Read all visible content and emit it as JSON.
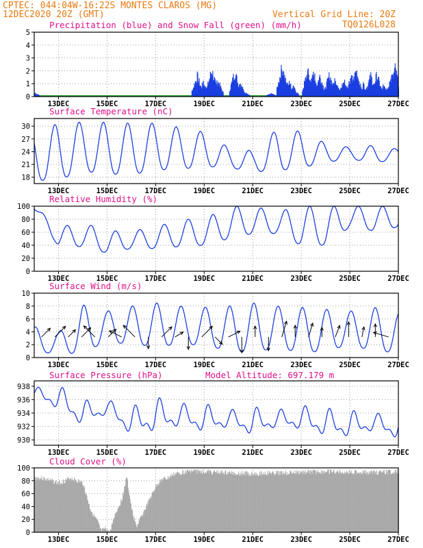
{
  "header": {
    "line1_left": "CPTEC:   044:04W-16:22S   MONTES CLAROS (MG)",
    "line2_left": "12DEC2020 20Z (GMT)",
    "line2_right": "Vertical Grid Line: 20Z",
    "line3_right": "TQ0126L028"
  },
  "colors": {
    "header": "#e87a10",
    "title": "#e0108a",
    "series": "#1a3fe0",
    "snow": "#2aa02a",
    "cloud": "#a6a6a6",
    "arrow": "#000000"
  },
  "date_ticks": [
    "13DEC",
    "15DEC",
    "17DEC",
    "19DEC",
    "21DEC",
    "23DEC",
    "25DEC",
    "27DEC"
  ],
  "chart_data": [
    {
      "type": "bar",
      "title": "Precipitation (blue) and Snow Fall (green) (mm/h)",
      "ylim": [
        0,
        5
      ],
      "yticks": [
        0,
        1,
        2,
        3,
        4,
        5
      ],
      "series": [
        {
          "name": "Precipitation",
          "bursts": [
            [
              0.0,
              0.4
            ],
            [
              6.7,
              2.0
            ],
            [
              6.95,
              1.3
            ],
            [
              7.3,
              2.6
            ],
            [
              7.55,
              1.5
            ],
            [
              8.25,
              2.4
            ],
            [
              8.45,
              1.3
            ],
            [
              8.65,
              0.4
            ],
            [
              9.75,
              0.3
            ],
            [
              10.2,
              2.9
            ],
            [
              10.45,
              1.6
            ],
            [
              10.65,
              0.9
            ],
            [
              11.25,
              2.4
            ],
            [
              11.5,
              2.2
            ],
            [
              11.75,
              2.0
            ],
            [
              12.15,
              2.1
            ],
            [
              12.4,
              1.7
            ],
            [
              12.75,
              1.5
            ],
            [
              13.05,
              2.1
            ],
            [
              13.25,
              2.6
            ],
            [
              13.55,
              1.2
            ],
            [
              13.85,
              2.0
            ],
            [
              14.1,
              2.1
            ],
            [
              14.4,
              1.1
            ],
            [
              14.7,
              2.0
            ],
            [
              14.85,
              2.7
            ],
            [
              14.95,
              1.1
            ]
          ]
        },
        {
          "name": "Snow Fall",
          "values": "trace along zero line"
        }
      ]
    },
    {
      "type": "line",
      "title": "Surface Temperature (nC)",
      "ylim": [
        16.5,
        31.8
      ],
      "yticks": [
        18,
        21,
        24,
        27,
        30
      ],
      "min_max_pairs": [
        [
          17.2,
          29.0
        ],
        [
          17.4,
          30.6
        ],
        [
          19.4,
          31.0
        ],
        [
          18.8,
          30.9
        ],
        [
          18.6,
          30.7
        ],
        [
          19.7,
          30.7
        ],
        [
          19.9,
          29.7
        ],
        [
          20.5,
          28.6
        ],
        [
          20.3,
          25.0
        ],
        [
          19.3,
          24.2
        ],
        [
          19.5,
          29.3
        ],
        [
          20.2,
          28.8
        ],
        [
          21.5,
          26.0
        ],
        [
          22.3,
          25.0
        ],
        [
          21.4,
          25.5
        ],
        [
          22.2,
          24.6
        ],
        [
          21.6,
          25.7
        ],
        [
          22.6,
          24.6
        ],
        [
          22.3,
          24.9
        ],
        [
          22.0,
          24.6
        ]
      ]
    },
    {
      "type": "line",
      "title": "Relative Humidity (%)",
      "ylim": [
        0,
        100
      ],
      "yticks": [
        0,
        20,
        40,
        60,
        80,
        100
      ],
      "min_max_pairs": [
        [
          95,
          100
        ],
        [
          38,
          68
        ],
        [
          38,
          75
        ],
        [
          28,
          62
        ],
        [
          35,
          62
        ],
        [
          35,
          68
        ],
        [
          38,
          80
        ],
        [
          40,
          80
        ],
        [
          50,
          100
        ],
        [
          58,
          100
        ],
        [
          58,
          92
        ],
        [
          40,
          100
        ],
        [
          40,
          100
        ],
        [
          68,
          100
        ],
        [
          62,
          100
        ],
        [
          68,
          100
        ],
        [
          70,
          100
        ],
        [
          58,
          100
        ],
        [
          65,
          100
        ]
      ]
    },
    {
      "type": "line",
      "title": "Surface Wind (m/s)",
      "ylim": [
        0,
        10
      ],
      "yticks": [
        0,
        2,
        4,
        6,
        8,
        10
      ],
      "min_max_pairs": [
        [
          1,
          4.8
        ],
        [
          0.5,
          3.9
        ],
        [
          0.8,
          8.2
        ],
        [
          2.5,
          7.2
        ],
        [
          2.0,
          8.0
        ],
        [
          1.8,
          8.5
        ],
        [
          2.0,
          8.0
        ],
        [
          2.0,
          7.8
        ],
        [
          1.0,
          8.0
        ],
        [
          0.8,
          8.5
        ],
        [
          1.5,
          8.0
        ],
        [
          0.8,
          7.8
        ],
        [
          1.0,
          7.5
        ],
        [
          2.0,
          7.2
        ],
        [
          1.0,
          7.8
        ],
        [
          0.8,
          7.0
        ],
        [
          0.8,
          6.0
        ],
        [
          1.5,
          7.5
        ],
        [
          2.0,
          8.8
        ],
        [
          1.0,
          1.0
        ]
      ]
    },
    {
      "type": "line",
      "title": "Surface Pressure (hPa)",
      "annotation": "Model Altitude: 697.179 m",
      "ylim": [
        929.2,
        938.8
      ],
      "yticks": [
        930,
        932,
        934,
        936,
        938
      ],
      "min_max_pairs": [
        [
          936.0,
          937.8
        ],
        [
          934.0,
          938.2
        ],
        [
          931.5,
          936.0
        ],
        [
          933.5,
          936.0
        ],
        [
          930.0,
          935.0
        ],
        [
          930.5,
          936.5
        ],
        [
          931.5,
          935.5
        ],
        [
          930.5,
          935.5
        ],
        [
          931.5,
          934.5
        ],
        [
          930.0,
          935.0
        ],
        [
          931.5,
          934.5
        ],
        [
          931.0,
          935.2
        ],
        [
          930.0,
          934.8
        ],
        [
          929.8,
          934.5
        ],
        [
          931.0,
          934.0
        ],
        [
          929.5,
          934.0
        ],
        [
          929.5,
          933.5
        ],
        [
          930.5,
          933.0
        ],
        [
          929.8,
          933.5
        ]
      ]
    },
    {
      "type": "bar",
      "title": "Cloud Cover (%)",
      "ylim": [
        0,
        100
      ],
      "yticks": [
        0,
        20,
        40,
        60,
        80,
        100
      ],
      "x": [
        0.0,
        0.3,
        0.6,
        1.0,
        1.5,
        2.0,
        2.3,
        2.6,
        2.75,
        2.95,
        3.1,
        3.3,
        3.6,
        3.8,
        4.0,
        4.2,
        4.5,
        5.0,
        5.2,
        5.5,
        5.75,
        6.1,
        6.4,
        7.0,
        8.0,
        9.0,
        10.0,
        11.0,
        12.0,
        13.0,
        14.0,
        15.0
      ],
      "values": [
        88,
        88,
        85,
        80,
        88,
        80,
        40,
        20,
        5,
        10,
        3,
        30,
        55,
        90,
        40,
        12,
        35,
        75,
        85,
        88,
        94,
        97,
        99,
        98,
        96,
        95,
        96,
        97,
        98,
        97,
        97,
        98
      ]
    }
  ]
}
